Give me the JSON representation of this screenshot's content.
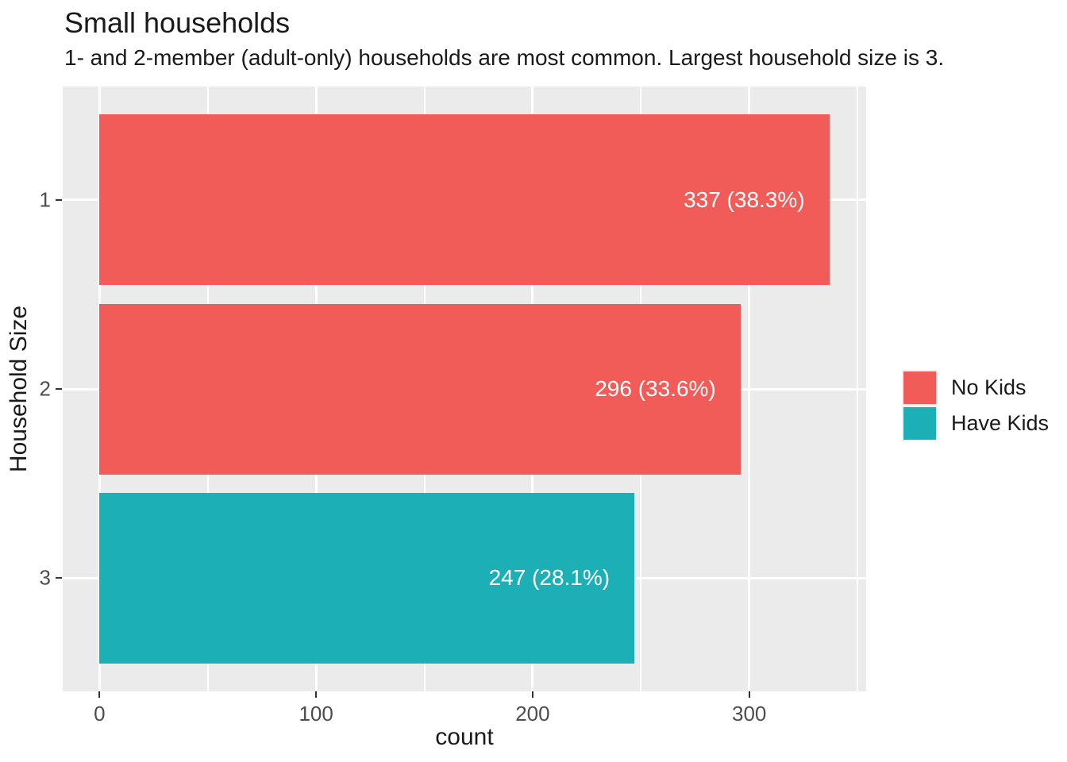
{
  "chart_data": {
    "type": "bar",
    "orientation": "horizontal",
    "title": "Small households",
    "subtitle": "1- and 2-member (adult-only) households are most common. Largest household size is 3.",
    "xlabel": "count",
    "ylabel": "Household Size",
    "categories": [
      "1",
      "2",
      "3"
    ],
    "bars": [
      {
        "category": "1",
        "value": 337,
        "percent": 38.3,
        "label": "337 (38.3%)",
        "group": "No Kids"
      },
      {
        "category": "2",
        "value": 296,
        "percent": 33.6,
        "label": "296 (33.6%)",
        "group": "No Kids"
      },
      {
        "category": "3",
        "value": 247,
        "percent": 28.1,
        "label": "247 (28.1%)",
        "group": "Have Kids"
      }
    ],
    "x_ticks": [
      0,
      100,
      200,
      300
    ],
    "x_minor_ticks": [
      50,
      150,
      250,
      350
    ],
    "xlim": [
      -17,
      354
    ],
    "grid": true,
    "legend": {
      "position": "right",
      "entries": [
        {
          "label": "No Kids",
          "color": "#f25c58"
        },
        {
          "label": "Have Kids",
          "color": "#1cb0b6"
        }
      ]
    },
    "colors": {
      "panel_background": "#ebebeb",
      "gridline": "#ffffff",
      "bar_label_text": "#ffffff",
      "axis_tick_text": "#4d4d4d",
      "tick_mark": "#333333",
      "title_text": "#1a1a1a"
    }
  }
}
